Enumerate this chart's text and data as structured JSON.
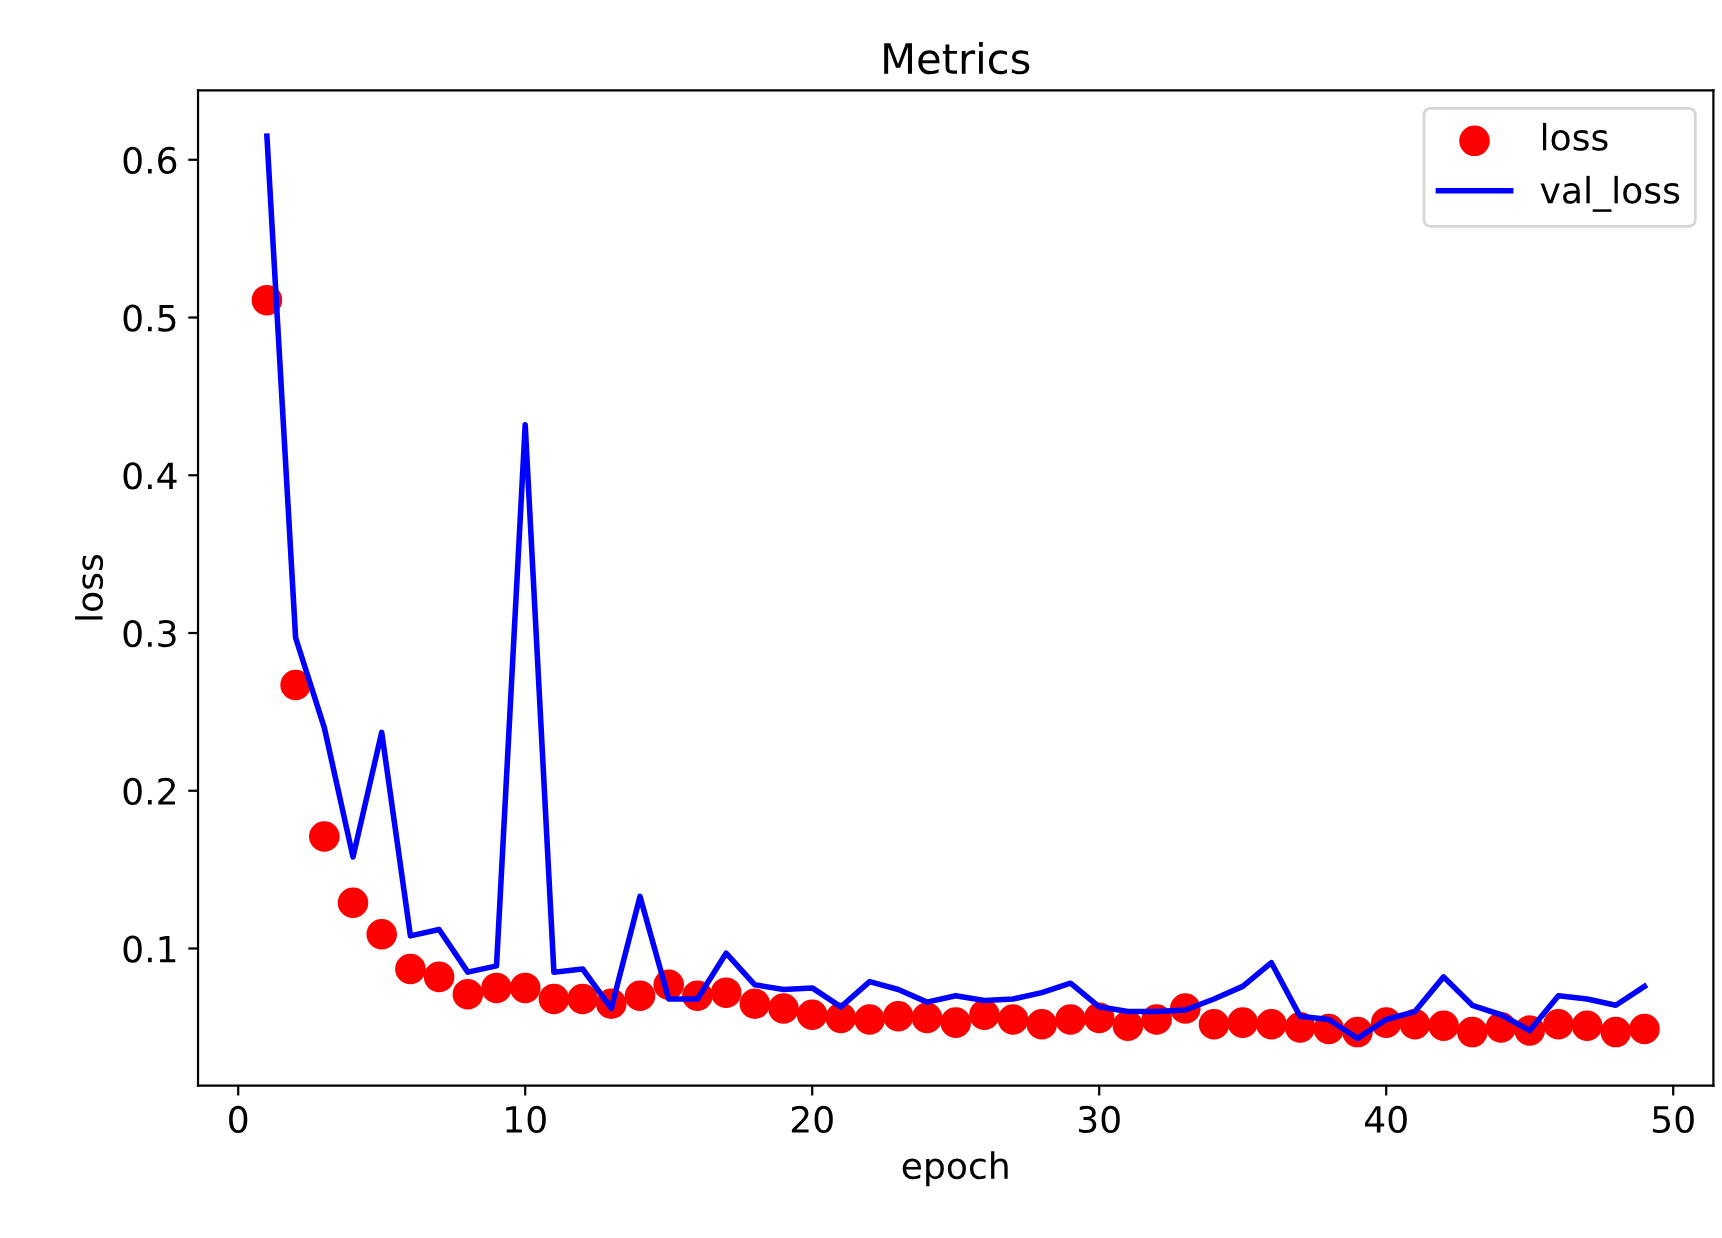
{
  "chart_data": {
    "type": "line",
    "title": "Metrics",
    "xlabel": "epoch",
    "ylabel": "loss",
    "x": [
      1,
      2,
      3,
      4,
      5,
      6,
      7,
      8,
      9,
      10,
      11,
      12,
      13,
      14,
      15,
      16,
      17,
      18,
      19,
      20,
      21,
      22,
      23,
      24,
      25,
      26,
      27,
      28,
      29,
      30,
      31,
      32,
      33,
      34,
      35,
      36,
      37,
      38,
      39,
      40,
      41,
      42,
      43,
      44,
      45,
      46,
      47,
      48,
      49
    ],
    "series": [
      {
        "name": "loss",
        "type": "scatter",
        "marker": "circle",
        "color": "#ff0000",
        "values": [
          0.511,
          0.267,
          0.171,
          0.129,
          0.109,
          0.087,
          0.082,
          0.071,
          0.075,
          0.075,
          0.068,
          0.068,
          0.065,
          0.07,
          0.077,
          0.07,
          0.072,
          0.065,
          0.062,
          0.058,
          0.056,
          0.055,
          0.057,
          0.056,
          0.053,
          0.058,
          0.055,
          0.052,
          0.055,
          0.056,
          0.051,
          0.055,
          0.062,
          0.052,
          0.053,
          0.052,
          0.05,
          0.049,
          0.047,
          0.053,
          0.052,
          0.051,
          0.047,
          0.05,
          0.048,
          0.052,
          0.051,
          0.047,
          0.049
        ]
      },
      {
        "name": "val_loss",
        "color": "#0000ff",
        "values": [
          0.615,
          0.297,
          0.24,
          0.158,
          0.237,
          0.108,
          0.112,
          0.085,
          0.089,
          0.432,
          0.085,
          0.087,
          0.062,
          0.133,
          0.068,
          0.068,
          0.097,
          0.077,
          0.074,
          0.075,
          0.063,
          0.079,
          0.074,
          0.066,
          0.07,
          0.067,
          0.068,
          0.072,
          0.078,
          0.063,
          0.06,
          0.06,
          0.061,
          0.068,
          0.076,
          0.091,
          0.057,
          0.055,
          0.043,
          0.055,
          0.06,
          0.082,
          0.064,
          0.058,
          0.048,
          0.07,
          0.068,
          0.064,
          0.076
        ]
      }
    ],
    "xlim": [
      -1.4,
      51.4
    ],
    "xticks": [
      0,
      10,
      20,
      30,
      40,
      50
    ],
    "ylim": [
      0.013,
      0.644
    ],
    "yticks": [
      0.1,
      0.2,
      0.3,
      0.4,
      0.5,
      0.6
    ],
    "legend": "top right"
  }
}
